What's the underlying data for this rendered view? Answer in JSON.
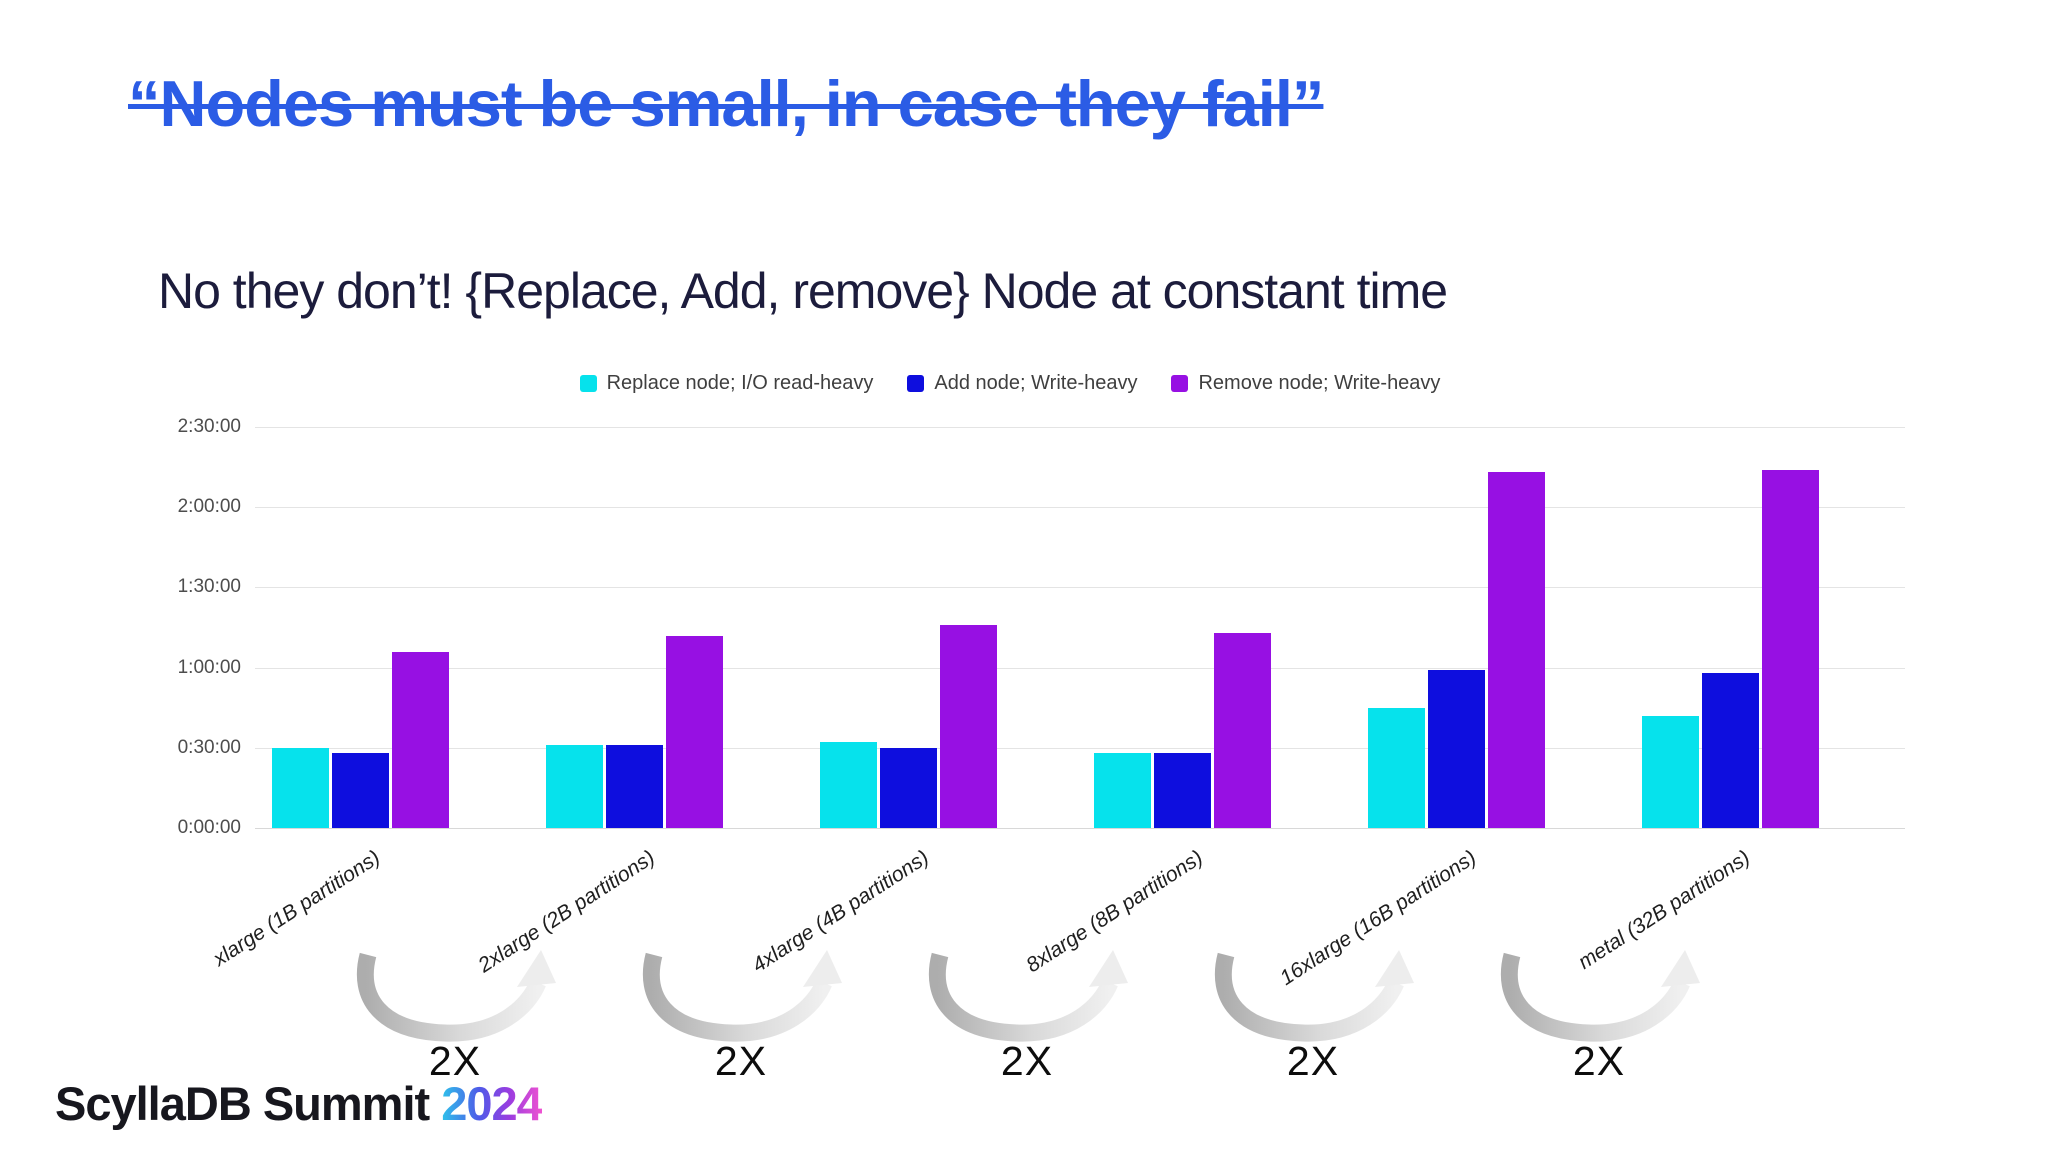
{
  "slide": {
    "title": "“Nodes must be small, in case they fail”",
    "subtitle": "No they don’t! {Replace, Add, remove} Node at constant time",
    "footer": {
      "brand": "ScyllaDB Summit",
      "year": "2024"
    }
  },
  "chart_data": {
    "type": "bar",
    "title": "",
    "categories": [
      "xlarge (1B partitions)",
      "2xlarge (2B partitions)",
      "4xlarge (4B partitions)",
      "8xlarge (8B partitions)",
      "16xlarge (16B partitions)",
      "metal (32B partitions)"
    ],
    "series": [
      {
        "name": "Replace node; I/O read-heavy",
        "color": "#06e2ec",
        "values_minutes": [
          30,
          31,
          32,
          28,
          45,
          42
        ],
        "values_time": [
          "0:30:00",
          "0:31:00",
          "0:32:00",
          "0:28:00",
          "0:45:00",
          "0:42:00"
        ]
      },
      {
        "name": "Add node; Write-heavy",
        "color": "#0e0ede",
        "values_minutes": [
          28,
          31,
          30,
          28,
          59,
          58
        ],
        "values_time": [
          "0:28:00",
          "0:31:00",
          "0:30:00",
          "0:28:00",
          "0:59:00",
          "0:58:00"
        ]
      },
      {
        "name": "Remove node; Write-heavy",
        "color": "#9710e3",
        "values_minutes": [
          66,
          72,
          76,
          73,
          133,
          134
        ],
        "values_time": [
          "1:06:00",
          "1:12:00",
          "1:16:00",
          "1:13:00",
          "2:13:00",
          "2:14:00"
        ]
      }
    ],
    "y_ticks": [
      "2:30:00",
      "2:00:00",
      "1:30:00",
      "1:00:00",
      "0:30:00",
      "0:00:00"
    ],
    "ylim_minutes": [
      0,
      150
    ],
    "grid": true,
    "legend_position": "top"
  },
  "annotations": {
    "scale_arrows": [
      {
        "label": "2X"
      },
      {
        "label": "2X"
      },
      {
        "label": "2X"
      },
      {
        "label": "2X"
      },
      {
        "label": "2X"
      }
    ]
  }
}
